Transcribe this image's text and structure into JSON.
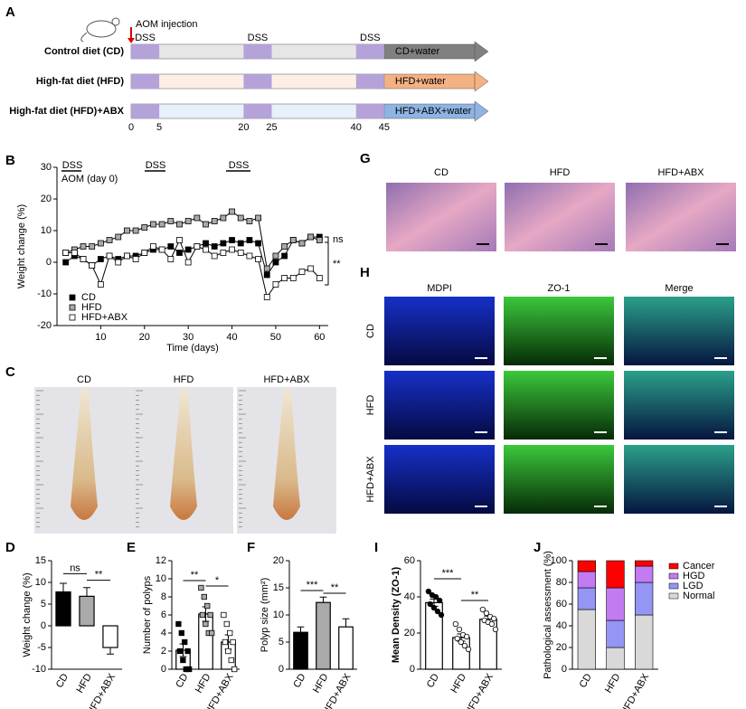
{
  "panel_labels": [
    "A",
    "B",
    "C",
    "D",
    "E",
    "F",
    "G",
    "H",
    "I",
    "J"
  ],
  "timeline": {
    "annotation": "AOM injection",
    "treatment": "DSS",
    "ticks": [
      0,
      5,
      20,
      25,
      40,
      45
    ],
    "rows": [
      {
        "label": "Control diet (CD)",
        "end_label": "CD+water",
        "color": "#808080"
      },
      {
        "label": "High-fat diet (HFD)",
        "end_label": "HFD+water",
        "color": "#f4b183"
      },
      {
        "label": "High-fat diet (HFD)+ABX",
        "end_label": "HFD+ABX+water",
        "color": "#8eb4e3"
      }
    ]
  },
  "chart_data": [
    {
      "type": "line",
      "xlabel": "Time (days)",
      "ylabel": "Weight change (%)",
      "x": [
        2,
        4,
        6,
        8,
        10,
        12,
        14,
        16,
        18,
        20,
        22,
        24,
        26,
        28,
        30,
        32,
        34,
        36,
        38,
        40,
        42,
        44,
        46,
        48,
        50,
        52,
        54,
        56,
        58,
        60
      ],
      "series": [
        {
          "name": "CD",
          "color": "#000000",
          "values": [
            0,
            2,
            1,
            -1,
            1,
            2,
            1,
            2,
            2,
            3,
            4,
            4,
            5,
            3,
            4,
            5,
            6,
            5,
            6,
            7,
            6,
            7,
            6,
            -4,
            0,
            2,
            7,
            6,
            8,
            8
          ]
        },
        {
          "name": "HFD",
          "color": "#aaaaaa",
          "values": [
            3,
            4,
            5,
            5,
            6,
            7,
            8,
            10,
            10,
            11,
            12,
            12,
            13,
            12,
            13,
            14,
            12,
            13,
            14,
            16,
            14,
            13,
            14,
            -2,
            2,
            5,
            7,
            6,
            8,
            7
          ]
        },
        {
          "name": "HFD+ABX",
          "color": "#ffffff",
          "values": [
            3,
            3,
            1,
            -1,
            -7,
            2,
            0,
            2,
            1,
            3,
            5,
            4,
            1,
            7,
            0,
            5,
            4,
            2,
            3,
            4,
            3,
            2,
            1,
            -11,
            -7,
            -5,
            -5,
            -3,
            -2,
            -5
          ]
        }
      ],
      "xlim": [
        0,
        62
      ],
      "xticks": [
        10,
        20,
        30,
        40,
        50,
        60
      ],
      "ylim": [
        -20,
        30
      ],
      "yticks": [
        -20,
        -10,
        0,
        10,
        20,
        30
      ],
      "annotations": [
        "DSS",
        "DSS",
        "DSS",
        "AOM (day 0)",
        "ns",
        "**"
      ]
    },
    {
      "type": "bar",
      "ylabel": "Weight change (%)",
      "categories": [
        "CD",
        "HFD",
        "HFD+ABX"
      ],
      "values": [
        7.8,
        6.8,
        -5
      ],
      "errors": [
        2,
        2,
        1.5
      ],
      "colors": [
        "#000000",
        "#aaaaaa",
        "#ffffff"
      ],
      "ylim": [
        -10,
        15
      ],
      "yticks": [
        -10,
        -5,
        0,
        5,
        10,
        15
      ],
      "annotations": [
        "ns",
        "**"
      ]
    },
    {
      "type": "bar",
      "ylabel": "Number of polyps",
      "categories": [
        "CD",
        "HFD",
        "HFD+ABX"
      ],
      "values": [
        2.1,
        6.1,
        3.0
      ],
      "errors": [
        0.7,
        0.8,
        0.8
      ],
      "colors": [
        "#ffffff",
        "#ffffff",
        "#ffffff"
      ],
      "points": [
        [
          5,
          4,
          3,
          2,
          2,
          1,
          0,
          0
        ],
        [
          9,
          8,
          7,
          6,
          6,
          5,
          4,
          4
        ],
        [
          6,
          5,
          4,
          3,
          3,
          2,
          1,
          0
        ]
      ],
      "point_colors": [
        "#000000",
        "#aaaaaa",
        "#ffffff"
      ],
      "marker": "square",
      "ylim": [
        0,
        12
      ],
      "yticks": [
        0,
        2,
        4,
        6,
        8,
        10,
        12
      ],
      "annotations": [
        "**",
        "*"
      ]
    },
    {
      "type": "bar",
      "ylabel": "Polyp size (mm²)",
      "categories": [
        "CD",
        "HFD",
        "HFD+ABX"
      ],
      "values": [
        6.8,
        12.3,
        7.8
      ],
      "errors": [
        1,
        1,
        1.5
      ],
      "colors": [
        "#000000",
        "#aaaaaa",
        "#ffffff"
      ],
      "ylim": [
        0,
        20
      ],
      "yticks": [
        0,
        5,
        10,
        15,
        20
      ],
      "annotations": [
        "***",
        "**"
      ]
    },
    {
      "type": "bar",
      "ylabel": "Mean Density (ZO-1)",
      "categories": [
        "CD",
        "HFD",
        "HFD+ABX"
      ],
      "values": [
        36.8,
        17.5,
        27.6
      ],
      "errors": [
        2,
        2,
        1.8
      ],
      "colors": [
        "#ffffff",
        "#ffffff",
        "#ffffff"
      ],
      "points": [
        [
          43,
          41,
          40,
          38,
          36,
          34,
          32,
          30
        ],
        [
          25,
          22,
          19,
          18,
          17,
          15,
          13,
          11
        ],
        [
          33,
          31,
          29,
          28,
          27,
          26,
          25,
          22
        ]
      ],
      "point_colors": [
        "#000000",
        "#ffffff",
        "#ffffff"
      ],
      "marker": "circle",
      "ylim": [
        0,
        60
      ],
      "yticks": [
        0,
        20,
        40,
        60
      ],
      "annotations": [
        "***",
        "**"
      ]
    },
    {
      "type": "stacked_bar",
      "ylabel": "Pathological assessment (%)",
      "categories": [
        "CD",
        "HFD",
        "HFD+ABX"
      ],
      "series": [
        {
          "name": "Normal",
          "color": "#d9d9d9",
          "values": [
            55,
            20,
            50
          ]
        },
        {
          "name": "LGD",
          "color": "#9595f5",
          "values": [
            20,
            25,
            30
          ]
        },
        {
          "name": "HGD",
          "color": "#c27bf0",
          "values": [
            15,
            30,
            15
          ]
        },
        {
          "name": "Cancer",
          "color": "#ff0000",
          "values": [
            10,
            25,
            5
          ]
        }
      ],
      "ylim": [
        0,
        100
      ],
      "yticks": [
        0,
        20,
        40,
        60,
        80,
        100
      ]
    }
  ],
  "images": {
    "colon": {
      "labels": [
        "CD",
        "HFD",
        "HFD+ABX"
      ]
    },
    "histology": {
      "labels": [
        "CD",
        "HFD",
        "HFD+ABX"
      ]
    },
    "fluorescence": {
      "columns": [
        "MDPI",
        "ZO-1",
        "Merge"
      ],
      "rows": [
        "CD",
        "HFD",
        "HFD+ABX"
      ]
    }
  }
}
